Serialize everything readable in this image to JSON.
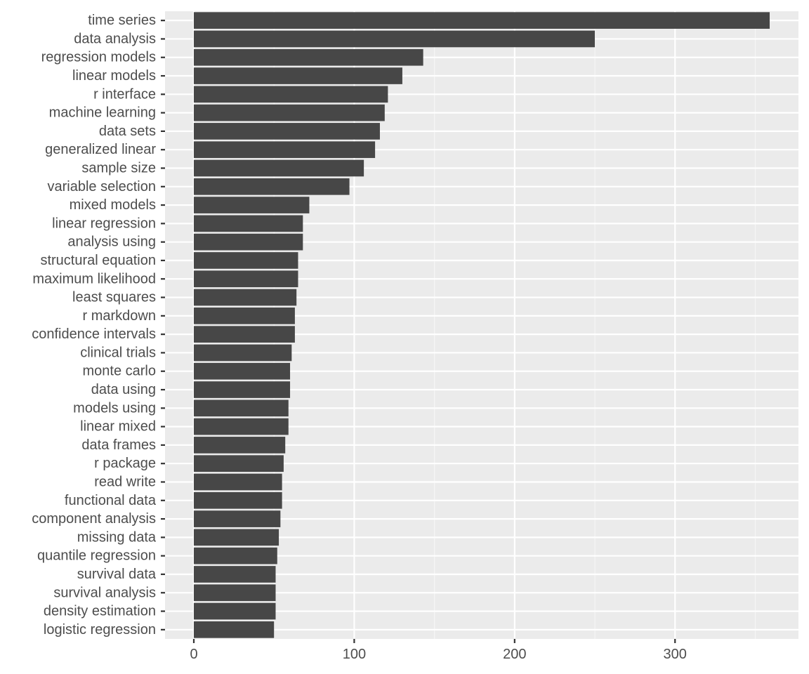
{
  "chart_data": {
    "type": "bar",
    "orientation": "horizontal",
    "title": "",
    "xlabel": "",
    "ylabel": "",
    "categories": [
      "time series",
      "data analysis",
      "regression models",
      "linear models",
      "r interface",
      "machine learning",
      "data sets",
      "generalized linear",
      "sample size",
      "variable selection",
      "mixed models",
      "linear regression",
      "analysis using",
      "structural equation",
      "maximum likelihood",
      "least squares",
      "r markdown",
      "confidence intervals",
      "clinical trials",
      "monte carlo",
      "data using",
      "models using",
      "linear mixed",
      "data frames",
      "r package",
      "read write",
      "functional data",
      "component analysis",
      "missing data",
      "quantile regression",
      "survival data",
      "survival analysis",
      "density estimation",
      "logistic regression"
    ],
    "values": [
      359,
      250,
      143,
      130,
      121,
      119,
      116,
      113,
      106,
      97,
      72,
      68,
      68,
      65,
      65,
      64,
      63,
      63,
      61,
      60,
      60,
      59,
      59,
      57,
      56,
      55,
      55,
      54,
      53,
      52,
      51,
      51,
      51,
      50
    ],
    "xlim": [
      -17.95,
      376.95
    ],
    "x_ticks": [
      0,
      100,
      200,
      300
    ],
    "x_tick_labels": [
      "0",
      "100",
      "200",
      "300"
    ],
    "grid": true,
    "legend": "none",
    "colors": {
      "bar": "#474747",
      "panel": "#EBEBEB",
      "grid_major": "#FFFFFF",
      "grid_minor": "#F5F5F5",
      "tick_text": "#4D4D4D",
      "tick_mark": "#333333"
    }
  }
}
